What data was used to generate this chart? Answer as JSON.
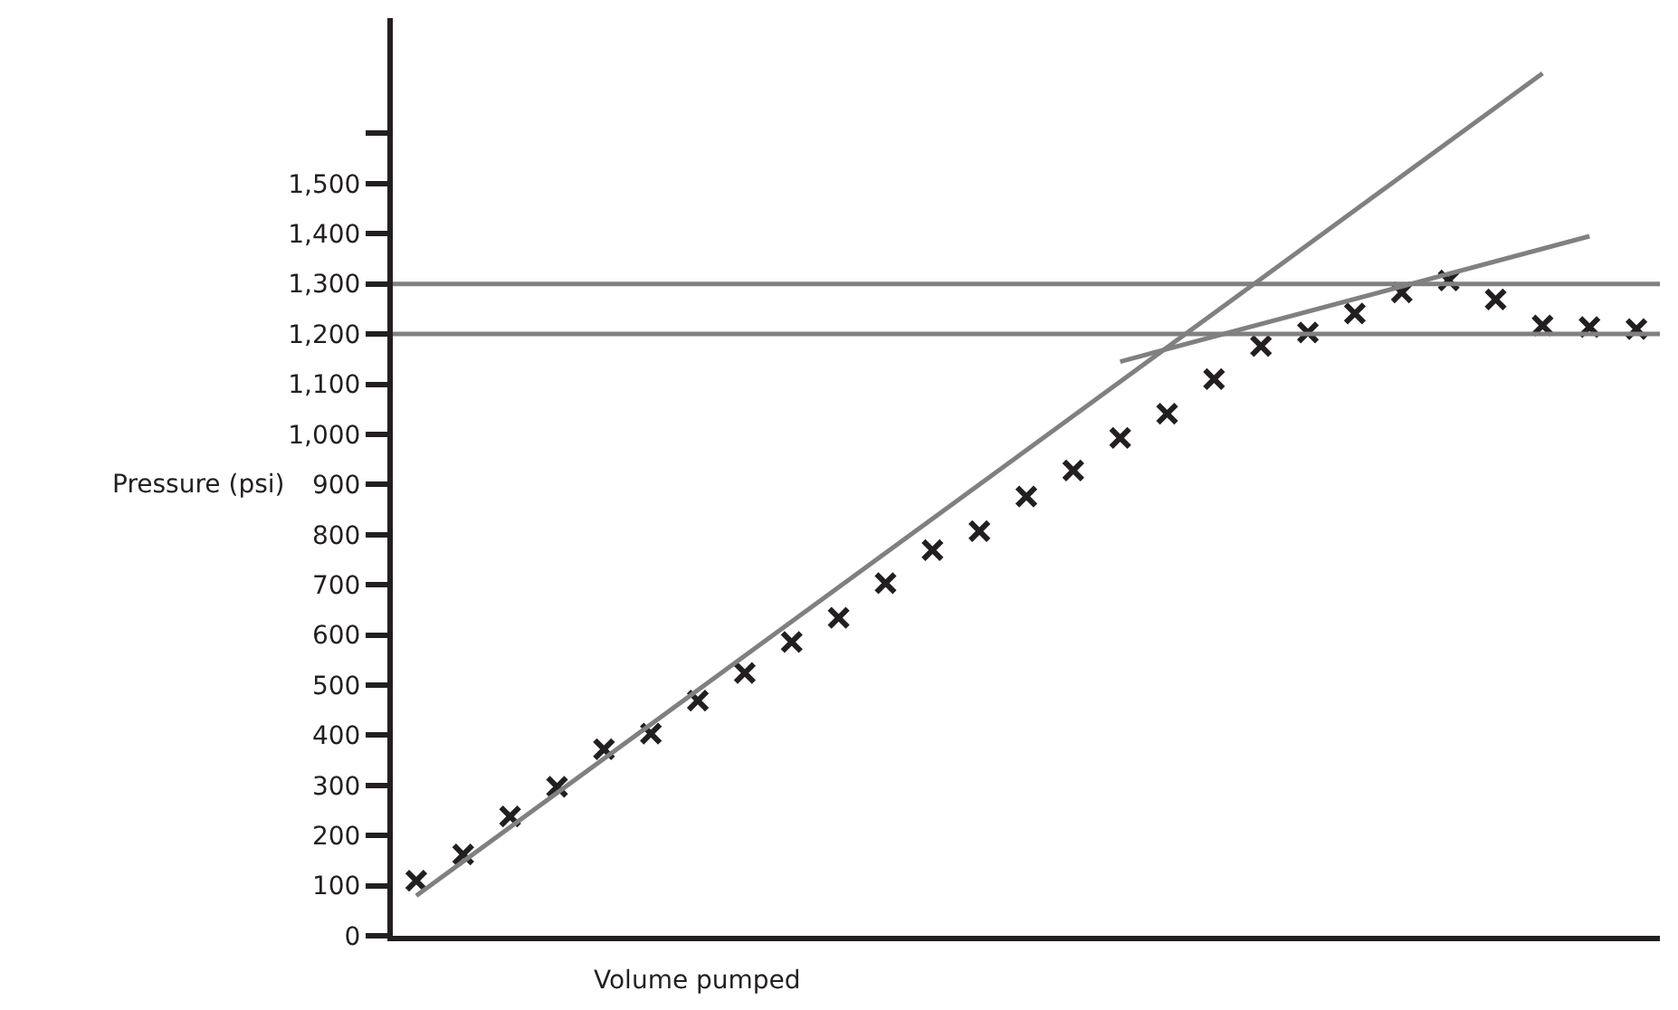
{
  "chart_data": {
    "type": "scatter",
    "xlabel": "Volume pumped",
    "ylabel": "Pressure (psi)",
    "categories": [
      null,
      null,
      null,
      null,
      null,
      null,
      null,
      null,
      null,
      null,
      null,
      null,
      null,
      null,
      null,
      null,
      null,
      null,
      null,
      null,
      null,
      null,
      null,
      null,
      null,
      null,
      null
    ],
    "series": [
      {
        "type": "scatter",
        "color": "#231f20",
        "marker": "cross",
        "values": [
          110,
          162,
          238,
          297,
          372,
          403,
          469,
          524,
          586,
          634,
          703,
          769,
          807,
          876,
          928,
          993,
          1041,
          1110,
          1176,
          1203,
          1241,
          1283,
          1307,
          1269,
          1217,
          1214,
          1210
        ]
      },
      {
        "type": "line",
        "color": "#808080",
        "marker": "none",
        "line_style": "solid",
        "values": [
          80,
          null,
          null,
          null,
          null,
          null,
          null,
          null,
          null,
          null,
          null,
          null,
          null,
          null,
          null,
          null,
          null,
          null,
          null,
          null,
          null,
          null,
          null,
          null,
          1720,
          null,
          null
        ]
      },
      {
        "type": "line",
        "color": "#808080",
        "marker": "none",
        "line_style": "solid",
        "values": [
          null,
          null,
          null,
          null,
          null,
          null,
          null,
          null,
          null,
          null,
          null,
          null,
          null,
          null,
          null,
          1145,
          null,
          null,
          null,
          null,
          null,
          null,
          null,
          null,
          null,
          1395,
          null
        ]
      }
    ],
    "ref_lines": [
      {
        "axis": "y",
        "value": 1300,
        "color": "#808080"
      },
      {
        "axis": "y",
        "value": 1200,
        "color": "#808080"
      }
    ],
    "ylim": [
      0,
      1830
    ],
    "yticks": [
      0,
      100,
      200,
      300,
      400,
      500,
      600,
      700,
      800,
      900,
      {
        "value": 1000,
        "label": "1,000"
      },
      {
        "value": 1100,
        "label": "1,100"
      },
      {
        "value": 1200,
        "label": "1,200"
      },
      {
        "value": 1300,
        "label": "1,300"
      },
      {
        "value": 1400,
        "label": "1,400"
      },
      {
        "value": 1500,
        "label": "1,500"
      },
      {
        "value": 1600,
        "label": null
      }
    ],
    "tick_labels": "y",
    "legend": false
  }
}
